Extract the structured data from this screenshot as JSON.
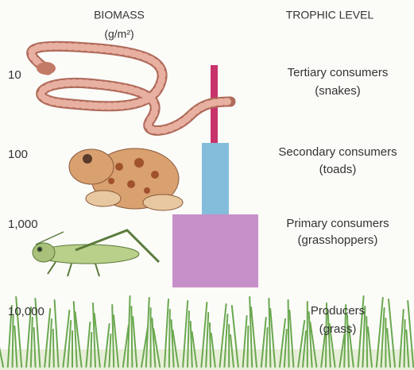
{
  "header": {
    "biomass": "BIOMASS",
    "unit": "(g/m²)",
    "trophic": "TROPHIC LEVEL"
  },
  "levels": [
    {
      "biomass": "10",
      "name": "Tertiary consumers",
      "example": "(snakes)"
    },
    {
      "biomass": "100",
      "name": "Secondary consumers",
      "example": "(toads)"
    },
    {
      "biomass": "1,000",
      "name": "Primary consumers",
      "example": "(grasshoppers)"
    },
    {
      "biomass": "10,000",
      "name": "Producers",
      "example": "(grass)"
    }
  ]
}
